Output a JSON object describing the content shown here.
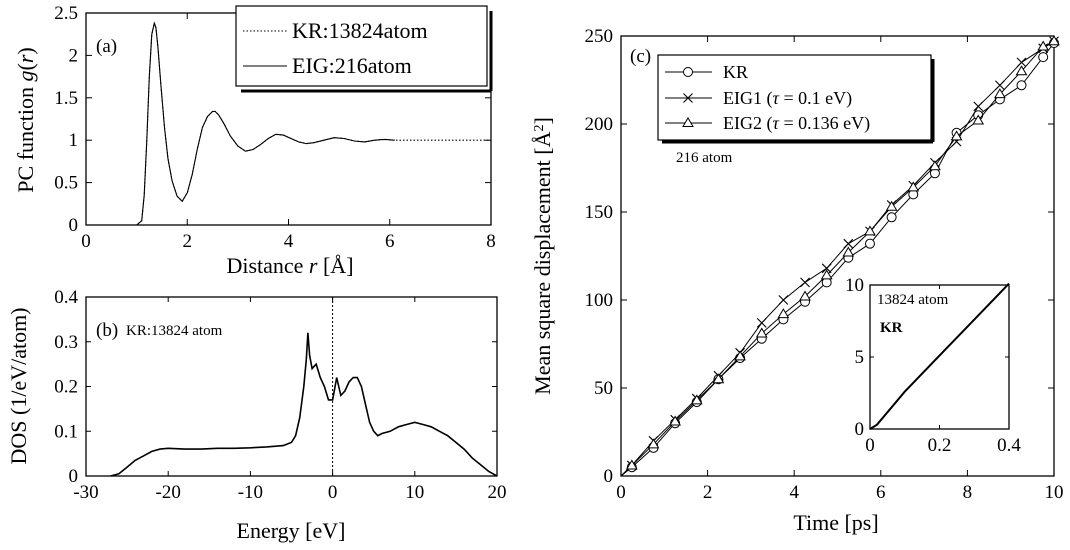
{
  "chart_data": [
    {
      "id": "a",
      "type": "line",
      "panel_label": "(a)",
      "xlabel_parts": [
        "Distance ",
        "r",
        " [Å]"
      ],
      "ylabel_parts": [
        "PC function  ",
        "g",
        "(",
        "r",
        ")"
      ],
      "xlim": [
        0,
        8
      ],
      "ylim": [
        0,
        2.5
      ],
      "xticks": [
        0,
        2,
        4,
        6,
        8
      ],
      "yticks": [
        0,
        0.5,
        1,
        1.5,
        2,
        2.5
      ],
      "xtick_labels": [
        "0",
        "2",
        "4",
        "6",
        "8"
      ],
      "ytick_labels": [
        "0",
        "0.5",
        "1",
        "1.5",
        "2",
        "2.5"
      ],
      "legend_position": "top-right",
      "series": [
        {
          "name": "KR:13824atom",
          "style": "dotted",
          "x": [
            0.9,
            1.0,
            1.1,
            1.15,
            1.2,
            1.25,
            1.3,
            1.35,
            1.38,
            1.42,
            1.48,
            1.55,
            1.62,
            1.7,
            1.8,
            1.9,
            2.0,
            2.1,
            2.2,
            2.3,
            2.4,
            2.5,
            2.55,
            2.62,
            2.72,
            2.85,
            3.0,
            3.15,
            3.3,
            3.45,
            3.6,
            3.75,
            3.9,
            4.05,
            4.2,
            4.35,
            4.5,
            4.7,
            4.9,
            5.1,
            5.3,
            5.5,
            5.7,
            5.9,
            6.1,
            6.5,
            7.0,
            7.5,
            8.0
          ],
          "y": [
            0,
            0,
            0.05,
            0.35,
            1.0,
            1.75,
            2.25,
            2.38,
            2.33,
            2.1,
            1.65,
            1.15,
            0.78,
            0.52,
            0.34,
            0.28,
            0.38,
            0.6,
            0.9,
            1.15,
            1.28,
            1.34,
            1.34,
            1.3,
            1.2,
            1.05,
            0.93,
            0.87,
            0.89,
            0.95,
            1.02,
            1.07,
            1.06,
            1.02,
            0.98,
            0.96,
            0.97,
            1.0,
            1.03,
            1.02,
            0.99,
            0.98,
            1.0,
            1.01,
            1.0,
            1.0,
            1.0,
            1.0,
            1.0
          ]
        },
        {
          "name": "EIG:216atom",
          "style": "solid",
          "x": [
            0.9,
            1.0,
            1.1,
            1.15,
            1.2,
            1.25,
            1.3,
            1.35,
            1.38,
            1.42,
            1.48,
            1.55,
            1.62,
            1.7,
            1.8,
            1.9,
            2.0,
            2.1,
            2.2,
            2.3,
            2.4,
            2.5,
            2.55,
            2.62,
            2.72,
            2.85,
            3.0,
            3.15,
            3.3,
            3.45,
            3.6,
            3.75,
            3.9,
            4.05,
            4.2,
            4.35,
            4.5,
            4.7,
            4.9,
            5.1,
            5.3,
            5.5,
            5.7,
            5.9,
            6.1
          ],
          "y": [
            0,
            0,
            0.05,
            0.35,
            1.0,
            1.75,
            2.25,
            2.38,
            2.33,
            2.1,
            1.65,
            1.15,
            0.78,
            0.52,
            0.34,
            0.28,
            0.38,
            0.6,
            0.9,
            1.15,
            1.28,
            1.34,
            1.34,
            1.3,
            1.2,
            1.05,
            0.93,
            0.87,
            0.89,
            0.95,
            1.02,
            1.07,
            1.06,
            1.02,
            0.98,
            0.96,
            0.97,
            1.0,
            1.03,
            1.02,
            0.99,
            0.98,
            1.0,
            1.01,
            1.0
          ]
        }
      ]
    },
    {
      "id": "b",
      "type": "line",
      "panel_label": "(b)",
      "annotation": "KR:13824 atom",
      "xlabel": "Energy [eV]",
      "ylabel": "DOS (1/eV/atom)",
      "xlim": [
        -30,
        20
      ],
      "ylim": [
        0,
        0.4
      ],
      "xticks": [
        -30,
        -20,
        -10,
        0,
        10,
        20
      ],
      "yticks": [
        0,
        0.1,
        0.2,
        0.3,
        0.4
      ],
      "xtick_labels": [
        "-30",
        "-20",
        "-10",
        "0",
        "10",
        "20"
      ],
      "ytick_labels": [
        "0",
        "0.1",
        "0.2",
        "0.3",
        "0.4"
      ],
      "fermi_level_marker_x": 0,
      "series": [
        {
          "name": "DOS",
          "style": "solid",
          "x": [
            -27,
            -26,
            -25,
            -24,
            -23,
            -22,
            -21,
            -20,
            -18,
            -16,
            -14,
            -12,
            -10,
            -8,
            -6,
            -5,
            -4.5,
            -4,
            -3.5,
            -3.2,
            -3.0,
            -2.8,
            -2.5,
            -2.0,
            -1.5,
            -1.0,
            -0.5,
            0.0,
            0.3,
            0.5,
            1.0,
            1.5,
            2.0,
            2.5,
            3.0,
            3.5,
            4.0,
            4.5,
            5.0,
            5.5,
            6.0,
            7.0,
            8.0,
            9.0,
            10.0,
            11.0,
            12.0,
            13.0,
            14.0,
            15.0,
            16.0,
            17.0,
            18.0,
            19.0,
            20.0
          ],
          "y": [
            0.0,
            0.005,
            0.02,
            0.035,
            0.045,
            0.055,
            0.06,
            0.062,
            0.06,
            0.06,
            0.062,
            0.062,
            0.063,
            0.065,
            0.068,
            0.075,
            0.09,
            0.13,
            0.2,
            0.26,
            0.32,
            0.27,
            0.24,
            0.25,
            0.22,
            0.2,
            0.17,
            0.17,
            0.2,
            0.22,
            0.18,
            0.19,
            0.21,
            0.22,
            0.22,
            0.2,
            0.16,
            0.12,
            0.1,
            0.09,
            0.095,
            0.1,
            0.11,
            0.115,
            0.12,
            0.115,
            0.11,
            0.1,
            0.09,
            0.075,
            0.06,
            0.04,
            0.025,
            0.01,
            0.0
          ]
        }
      ]
    },
    {
      "id": "c",
      "type": "line",
      "panel_label": "(c)",
      "annotation": "216 atom",
      "xlabel": "Time [ps]",
      "ylabel_parts": [
        "Mean square displacement [Å",
        "2",
        "]"
      ],
      "xlim": [
        0,
        10
      ],
      "ylim": [
        0,
        250
      ],
      "xticks": [
        0,
        2,
        4,
        6,
        8,
        10
      ],
      "yticks": [
        0,
        50,
        100,
        150,
        200,
        250
      ],
      "xtick_labels": [
        "0",
        "2",
        "4",
        "6",
        "8",
        "10"
      ],
      "ytick_labels": [
        "0",
        "50",
        "100",
        "150",
        "200",
        "250"
      ],
      "legend_position": "top-left",
      "legend_labels": [
        {
          "plain": "KR"
        },
        {
          "plain": "EIG1 (",
          "sym": "τ",
          "rest": " = 0.1 eV)"
        },
        {
          "plain": "EIG2 (",
          "sym": "τ",
          "rest": " = 0.136 eV)"
        }
      ],
      "series": [
        {
          "name": "KR",
          "marker": "circle",
          "x": [
            0,
            0.25,
            0.75,
            1.25,
            1.75,
            2.25,
            2.75,
            3.25,
            3.75,
            4.25,
            4.75,
            5.25,
            5.75,
            6.25,
            6.75,
            7.25,
            7.75,
            8.25,
            8.75,
            9.25,
            9.75,
            10
          ],
          "y": [
            0,
            5,
            16,
            30,
            42,
            55,
            67,
            78,
            89,
            99,
            110,
            124,
            132,
            147,
            160,
            172,
            195,
            205,
            214,
            222,
            238,
            246
          ]
        },
        {
          "name": "EIG1",
          "marker": "cross",
          "x": [
            0,
            0.25,
            0.75,
            1.25,
            1.75,
            2.25,
            2.75,
            3.25,
            3.75,
            4.25,
            4.75,
            5.25,
            5.75,
            6.25,
            6.75,
            7.25,
            7.75,
            8.25,
            8.75,
            9.25,
            9.75,
            10
          ],
          "y": [
            0,
            6,
            20,
            32,
            44,
            57,
            70,
            87,
            100,
            110,
            118,
            132,
            139,
            154,
            165,
            178,
            190,
            210,
            222,
            235,
            243,
            247
          ]
        },
        {
          "name": "EIG2",
          "marker": "triangle",
          "x": [
            0,
            0.25,
            0.75,
            1.25,
            1.75,
            2.25,
            2.75,
            3.25,
            3.75,
            4.25,
            4.75,
            5.25,
            5.75,
            6.25,
            6.75,
            7.25,
            7.75,
            8.25,
            8.75,
            9.25,
            9.75,
            10
          ],
          "y": [
            0,
            6,
            18,
            31,
            43,
            55,
            68,
            81,
            92,
            102,
            114,
            127,
            139,
            153,
            164,
            176,
            193,
            202,
            217,
            230,
            244,
            247
          ]
        }
      ],
      "inset": {
        "annotation_line1": "13824 atom",
        "annotation_line2": "KR",
        "xlim": [
          0,
          0.4
        ],
        "ylim": [
          0,
          10
        ],
        "xticks": [
          0,
          0.2,
          0.4
        ],
        "yticks": [
          0,
          5,
          10
        ],
        "xtick_labels": [
          "0",
          "0.2",
          "0.4"
        ],
        "ytick_labels": [
          "0",
          "5",
          "10"
        ],
        "series": [
          {
            "name": "KR",
            "x": [
              0,
              0.02,
              0.1,
              0.2,
              0.3,
              0.4
            ],
            "y": [
              0,
              0.3,
              2.6,
              5.1,
              7.6,
              10.1
            ]
          }
        ]
      }
    }
  ]
}
